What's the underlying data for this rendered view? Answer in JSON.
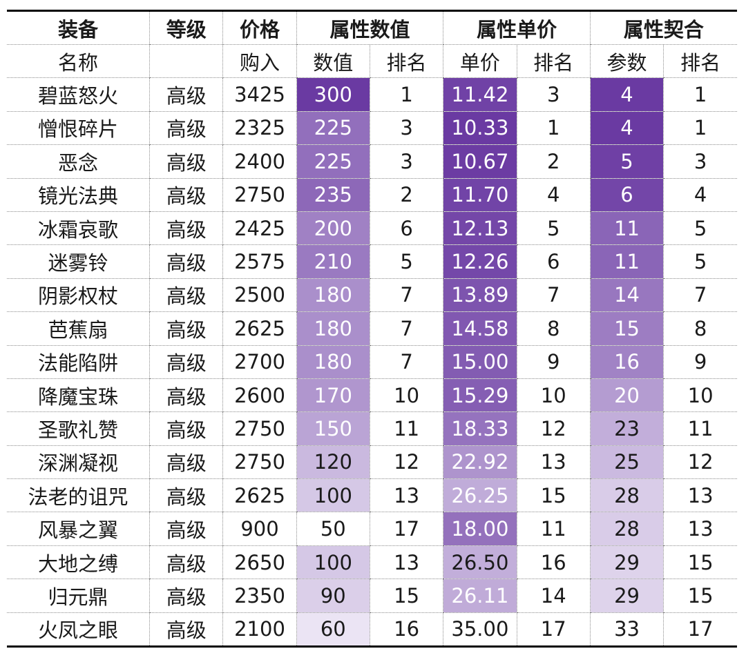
{
  "header": {
    "top": [
      "装备",
      "等级",
      "价格",
      "属性数值",
      "属性单价",
      "属性契合"
    ],
    "sub": [
      "名称",
      "",
      "购入",
      "数值",
      "排名",
      "单价",
      "排名",
      "参数",
      "排名"
    ]
  },
  "heatmap_colors": {
    "darkest": "#6a3aa2",
    "lightest": "#f0ebf7",
    "blank": "#ffffff"
  },
  "rows": [
    [
      "碧蓝怒火",
      "高级",
      "3425",
      "300",
      "1",
      "11.42",
      "3",
      "4",
      "1"
    ],
    [
      "憎恨碎片",
      "高级",
      "2325",
      "225",
      "3",
      "10.33",
      "1",
      "4",
      "1"
    ],
    [
      "恶念",
      "高级",
      "2400",
      "225",
      "3",
      "10.67",
      "2",
      "5",
      "3"
    ],
    [
      "镜光法典",
      "高级",
      "2750",
      "235",
      "2",
      "11.70",
      "4",
      "6",
      "4"
    ],
    [
      "冰霜哀歌",
      "高级",
      "2425",
      "200",
      "6",
      "12.13",
      "5",
      "11",
      "5"
    ],
    [
      "迷雾铃",
      "高级",
      "2575",
      "210",
      "5",
      "12.26",
      "6",
      "11",
      "5"
    ],
    [
      "阴影权杖",
      "高级",
      "2500",
      "180",
      "7",
      "13.89",
      "7",
      "14",
      "7"
    ],
    [
      "芭蕉扇",
      "高级",
      "2625",
      "180",
      "7",
      "14.58",
      "8",
      "15",
      "8"
    ],
    [
      "法能陷阱",
      "高级",
      "2700",
      "180",
      "7",
      "15.00",
      "9",
      "16",
      "9"
    ],
    [
      "降魔宝珠",
      "高级",
      "2600",
      "170",
      "10",
      "15.29",
      "10",
      "20",
      "10"
    ],
    [
      "圣歌礼赞",
      "高级",
      "2750",
      "150",
      "11",
      "18.33",
      "12",
      "23",
      "11"
    ],
    [
      "深渊凝视",
      "高级",
      "2750",
      "120",
      "12",
      "22.92",
      "13",
      "25",
      "12"
    ],
    [
      "法老的诅咒",
      "高级",
      "2625",
      "100",
      "13",
      "26.25",
      "15",
      "28",
      "13"
    ],
    [
      "风暴之翼",
      "高级",
      "900",
      "50",
      "17",
      "18.00",
      "11",
      "28",
      "13"
    ],
    [
      "大地之缚",
      "高级",
      "2650",
      "100",
      "13",
      "26.50",
      "16",
      "29",
      "15"
    ],
    [
      "归元鼎",
      "高级",
      "2350",
      "90",
      "15",
      "26.11",
      "14",
      "29",
      "15"
    ],
    [
      "火凤之眼",
      "高级",
      "2100",
      "60",
      "16",
      "35.00",
      "17",
      "33",
      "17"
    ]
  ]
}
